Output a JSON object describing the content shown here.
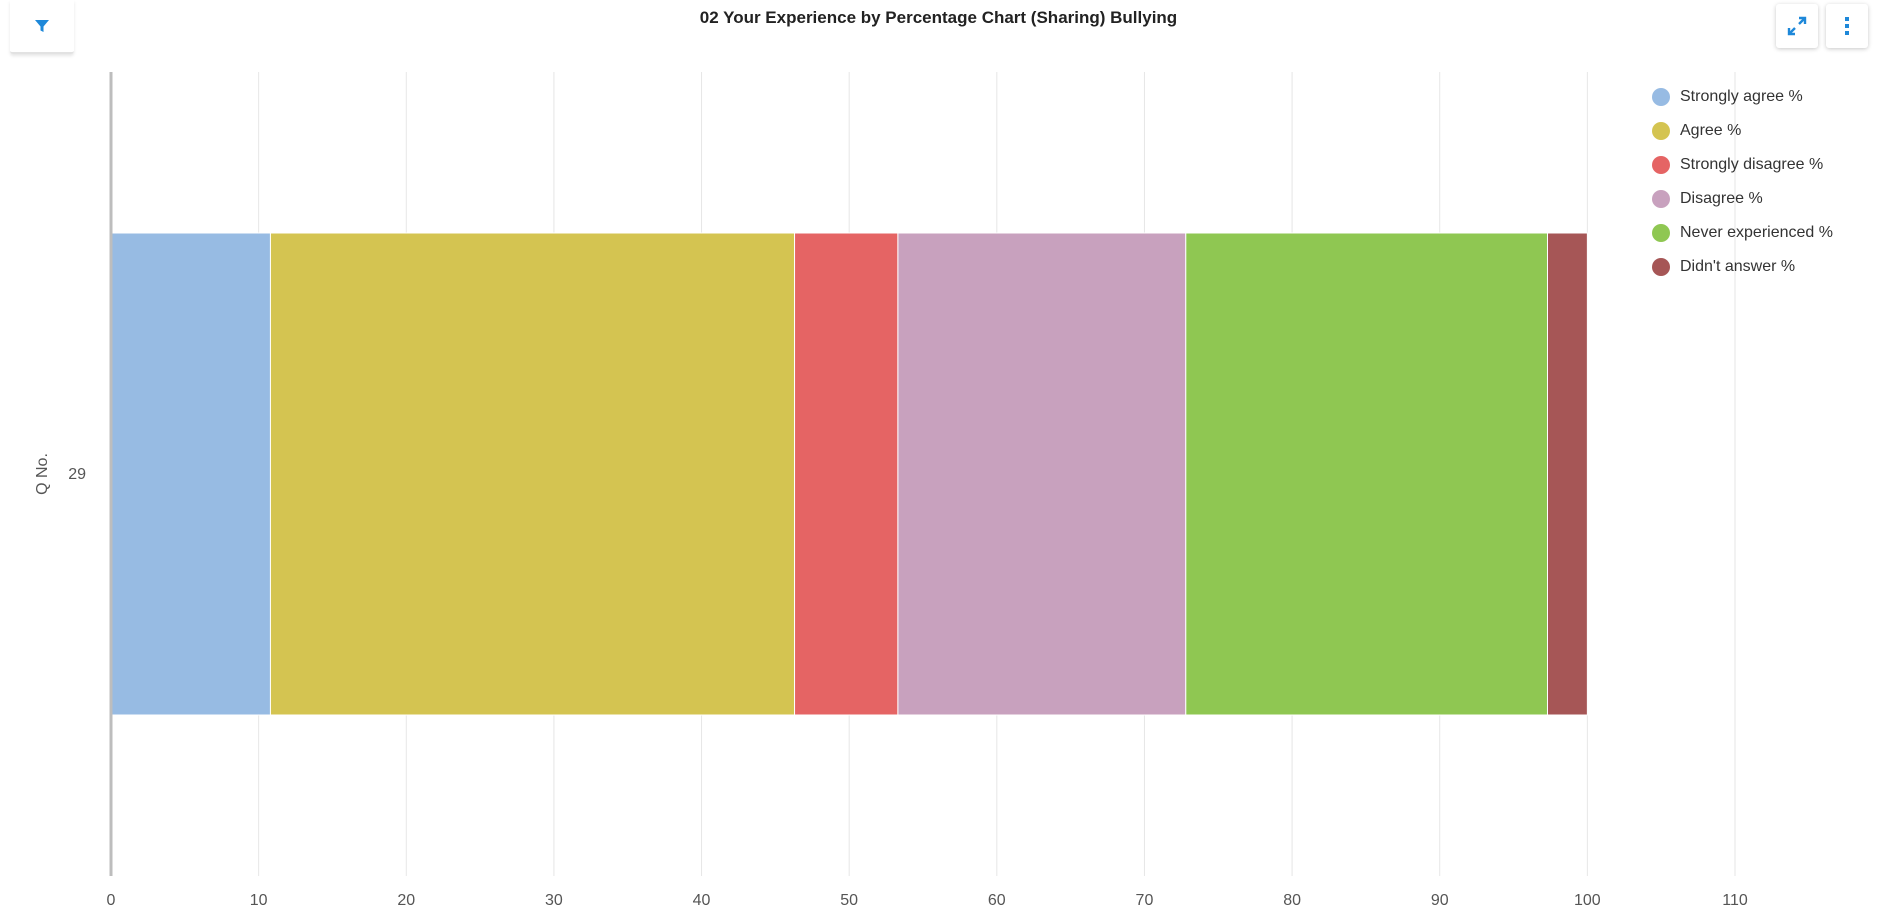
{
  "header": {
    "title": "02 Your Experience by Percentage Chart (Sharing) Bullying"
  },
  "toolbar": {
    "filter_icon": "filter-icon",
    "expand_icon": "expand-icon",
    "menu_icon": "kebab-menu-icon",
    "accent_color": "#1e88d9"
  },
  "chart_data": {
    "type": "bar",
    "orientation": "horizontal",
    "stacked": true,
    "categories": [
      "29"
    ],
    "ylabel": "Q No.",
    "xlabel": "",
    "xlim": [
      0,
      110
    ],
    "xticks": [
      0,
      10,
      20,
      30,
      40,
      50,
      60,
      70,
      80,
      90,
      100,
      110
    ],
    "grid": true,
    "legend_position": "top-right",
    "series": [
      {
        "name": "Strongly agree %",
        "color": "#97bbe3",
        "values": [
          10.8
        ]
      },
      {
        "name": "Agree %",
        "color": "#d4c451",
        "values": [
          35.5
        ]
      },
      {
        "name": "Strongly disagree %",
        "color": "#e56464",
        "values": [
          7.0
        ]
      },
      {
        "name": "Disagree %",
        "color": "#c8a1be",
        "values": [
          19.5
        ]
      },
      {
        "name": "Never experienced %",
        "color": "#8fc752",
        "values": [
          24.5
        ]
      },
      {
        "name": "Didn't answer %",
        "color": "#a65656",
        "values": [
          2.7
        ]
      }
    ]
  }
}
